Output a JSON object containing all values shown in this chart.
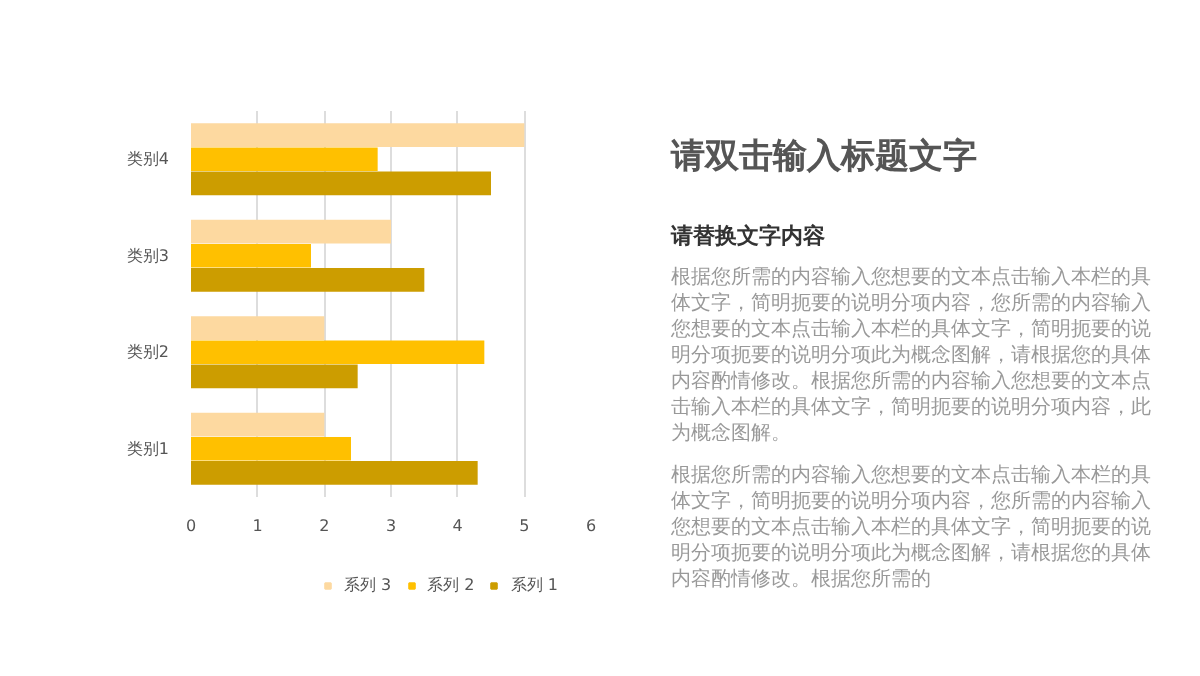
{
  "chart_data": {
    "type": "bar",
    "orientation": "horizontal",
    "title": "请双击输入标题文字",
    "subtitle": "请替换文字内容",
    "categories": [
      "类别4",
      "类别3",
      "类别2",
      "类别1"
    ],
    "series": [
      {
        "name": "系列 3",
        "color": "#fdd9a0",
        "values": [
          5,
          3,
          2,
          2
        ]
      },
      {
        "name": "系列 2",
        "color": "#ffc000",
        "values": [
          2.8,
          1.8,
          4.4,
          2.4
        ]
      },
      {
        "name": "系列 1",
        "color": "#cc9d00",
        "values": [
          4.5,
          3.5,
          2.5,
          4.3
        ]
      }
    ],
    "xlim": [
      0,
      6
    ],
    "xticks": [
      0,
      1,
      2,
      3,
      4,
      5,
      6
    ],
    "grid": "x",
    "legend": "bottom",
    "annotations": [
      "根据您所需的内容输入您想要的文本点击输入本栏的具体文字，简明扼要的说明分项内容，您所需的内容输入您想要的文本点击输入本栏的具体文字，简明扼要的说明分项扼要的说明分项此为概念图解，请根据您的具体内容酌情修改。根据您所需的内容输入您想要的文本点击输入本栏的具体文字，简明扼要的说明分项内容，此为概念图解。",
      "根据您所需的内容输入您想要的文本点击输入本栏的具体文字，简明扼要的说明分项内容，您所需的内容输入您想要的文本点击输入本栏的具体文字，简明扼要的说明分项扼要的说明分项此为概念图解，请根据您的具体内容酌情修改。根据您所需的"
    ]
  }
}
